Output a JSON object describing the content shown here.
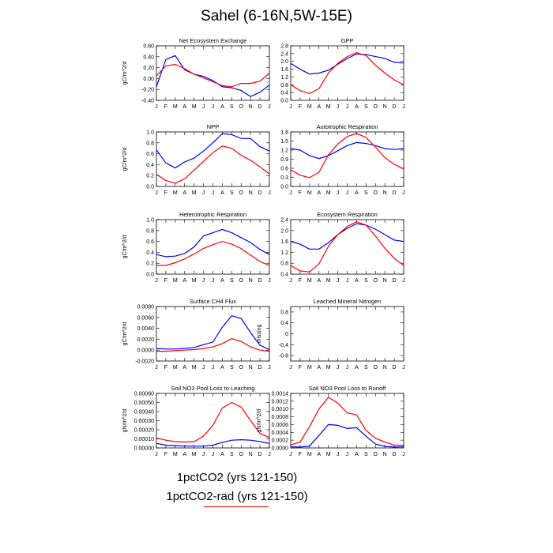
{
  "figure": {
    "title": "Sahel (6-16N,5W-15E)",
    "legend": [
      {
        "label": "1pctCO2 (yrs 121-150)",
        "color": "#0000ff"
      },
      {
        "label": "1pctCO2-rad (yrs 121-150)",
        "color": "#ff0000"
      }
    ]
  },
  "chart_data": [
    {
      "type": "line",
      "title": "Net Ecosystem Exchange",
      "ylabel": "gC/m^2/d",
      "categories": [
        "J",
        "F",
        "M",
        "A",
        "M",
        "J",
        "J",
        "A",
        "S",
        "O",
        "N",
        "D",
        "J"
      ],
      "ylim": [
        -0.4,
        0.6
      ],
      "yticks": [
        -0.4,
        -0.2,
        0.0,
        0.2,
        0.4,
        0.6
      ],
      "ytick_labels": [
        "-0.40",
        "-0.20",
        "0.00",
        "0.20",
        "0.40",
        "0.60"
      ],
      "series": [
        {
          "color": "#0000ff",
          "values": [
            -0.15,
            0.35,
            0.42,
            0.16,
            0.08,
            0.04,
            -0.04,
            -0.15,
            -0.17,
            -0.22,
            -0.33,
            -0.25,
            -0.12
          ]
        },
        {
          "color": "#ff0000",
          "values": [
            0.05,
            0.23,
            0.26,
            0.18,
            0.08,
            0.01,
            -0.06,
            -0.13,
            -0.15,
            -0.09,
            -0.09,
            -0.05,
            0.1
          ]
        }
      ]
    },
    {
      "type": "line",
      "title": "GPP",
      "ylabel": "",
      "categories": [
        "J",
        "F",
        "M",
        "A",
        "M",
        "J",
        "J",
        "A",
        "S",
        "O",
        "N",
        "D",
        "J"
      ],
      "ylim": [
        0.0,
        2.8
      ],
      "yticks": [
        0.0,
        0.4,
        0.8,
        1.2,
        1.6,
        2.0,
        2.4,
        2.8
      ],
      "ytick_labels": [
        "0.0",
        "0.4",
        "0.8",
        "1.2",
        "1.6",
        "2.0",
        "2.4",
        "2.8"
      ],
      "series": [
        {
          "color": "#0000ff",
          "values": [
            1.9,
            1.6,
            1.35,
            1.4,
            1.55,
            1.85,
            2.15,
            2.38,
            2.35,
            2.25,
            2.15,
            1.95,
            1.92
          ]
        },
        {
          "color": "#ff0000",
          "values": [
            0.8,
            0.5,
            0.35,
            0.6,
            1.4,
            1.9,
            2.25,
            2.45,
            2.3,
            1.8,
            1.4,
            1.05,
            0.8
          ]
        }
      ]
    },
    {
      "type": "line",
      "title": "NPP",
      "ylabel": "gC/m^2/d",
      "categories": [
        "J",
        "F",
        "M",
        "A",
        "M",
        "J",
        "J",
        "A",
        "S",
        "O",
        "N",
        "D",
        "J"
      ],
      "ylim": [
        0.0,
        1.0
      ],
      "yticks": [
        0.0,
        0.2,
        0.4,
        0.6,
        0.8,
        1.0
      ],
      "ytick_labels": [
        "0.0",
        "0.2",
        "0.4",
        "0.6",
        "0.8",
        "1.0"
      ],
      "series": [
        {
          "color": "#0000ff",
          "values": [
            0.67,
            0.43,
            0.34,
            0.45,
            0.52,
            0.65,
            0.8,
            0.97,
            0.95,
            0.88,
            0.88,
            0.73,
            0.65
          ]
        },
        {
          "color": "#ff0000",
          "values": [
            0.22,
            0.11,
            0.06,
            0.14,
            0.3,
            0.46,
            0.62,
            0.74,
            0.7,
            0.57,
            0.48,
            0.36,
            0.23
          ]
        }
      ]
    },
    {
      "type": "line",
      "title": "Autotrophic Respiration",
      "ylabel": "",
      "categories": [
        "J",
        "F",
        "M",
        "A",
        "M",
        "J",
        "J",
        "A",
        "S",
        "O",
        "N",
        "D",
        "J"
      ],
      "ylim": [
        0.0,
        1.8
      ],
      "yticks": [
        0.0,
        0.3,
        0.6,
        0.9,
        1.2,
        1.5,
        1.8
      ],
      "ytick_labels": [
        "0.0",
        "0.3",
        "0.6",
        "0.9",
        "1.2",
        "1.5",
        "1.8"
      ],
      "series": [
        {
          "color": "#0000ff",
          "values": [
            1.25,
            1.2,
            1.02,
            0.92,
            1.02,
            1.18,
            1.35,
            1.45,
            1.42,
            1.35,
            1.25,
            1.22,
            1.25
          ]
        },
        {
          "color": "#ff0000",
          "values": [
            0.55,
            0.37,
            0.29,
            0.47,
            1.05,
            1.4,
            1.65,
            1.75,
            1.62,
            1.3,
            0.95,
            0.73,
            0.58
          ]
        }
      ]
    },
    {
      "type": "line",
      "title": "Heterotrophic Respiration",
      "ylabel": "gC/m^2/d",
      "categories": [
        "J",
        "F",
        "M",
        "A",
        "M",
        "J",
        "J",
        "A",
        "S",
        "O",
        "N",
        "D",
        "J"
      ],
      "ylim": [
        0.0,
        1.0
      ],
      "yticks": [
        0.0,
        0.2,
        0.4,
        0.6,
        0.8,
        1.0
      ],
      "ytick_labels": [
        "0.0",
        "0.2",
        "0.4",
        "0.6",
        "0.8",
        "1.0"
      ],
      "series": [
        {
          "color": "#0000ff",
          "values": [
            0.36,
            0.32,
            0.33,
            0.38,
            0.5,
            0.7,
            0.76,
            0.82,
            0.76,
            0.67,
            0.58,
            0.45,
            0.36
          ]
        },
        {
          "color": "#ff0000",
          "values": [
            0.16,
            0.16,
            0.21,
            0.28,
            0.37,
            0.47,
            0.54,
            0.6,
            0.55,
            0.47,
            0.35,
            0.23,
            0.16
          ]
        }
      ]
    },
    {
      "type": "line",
      "title": "Ecosystem Respiration",
      "ylabel": "",
      "categories": [
        "J",
        "F",
        "M",
        "A",
        "M",
        "J",
        "J",
        "A",
        "S",
        "O",
        "N",
        "D",
        "J"
      ],
      "ylim": [
        0.4,
        2.4
      ],
      "yticks": [
        0.4,
        0.8,
        1.2,
        1.6,
        2.0,
        2.4
      ],
      "ytick_labels": [
        "0.4",
        "0.8",
        "1.2",
        "1.6",
        "2.0",
        "2.4"
      ],
      "series": [
        {
          "color": "#0000ff",
          "values": [
            1.6,
            1.5,
            1.32,
            1.32,
            1.55,
            1.85,
            2.08,
            2.25,
            2.2,
            2.05,
            1.85,
            1.65,
            1.6
          ]
        },
        {
          "color": "#ff0000",
          "values": [
            0.72,
            0.52,
            0.48,
            0.78,
            1.42,
            1.85,
            2.15,
            2.32,
            2.2,
            1.8,
            1.35,
            0.98,
            0.72
          ]
        }
      ]
    },
    {
      "type": "line",
      "title": "Surface CH4 Flux",
      "ylabel": "gC/m^2/d",
      "categories": [
        "J",
        "F",
        "M",
        "A",
        "M",
        "J",
        "J",
        "A",
        "S",
        "O",
        "N",
        "D",
        "J"
      ],
      "ylim": [
        -0.002,
        0.008
      ],
      "yticks": [
        -0.002,
        0.0,
        0.002,
        0.004,
        0.006,
        0.008
      ],
      "ytick_labels": [
        "-0.0020",
        "0.0000",
        "0.0020",
        "0.0040",
        "0.0060",
        "0.0080"
      ],
      "series": [
        {
          "color": "#0000ff",
          "values": [
            0.0003,
            0.0002,
            0.0002,
            0.0003,
            0.0005,
            0.001,
            0.0015,
            0.0042,
            0.0063,
            0.0058,
            0.0032,
            0.0009,
            0.0001
          ]
        },
        {
          "color": "#ff0000",
          "values": [
            -0.0002,
            -0.0002,
            -0.0001,
            0.0,
            0.0001,
            0.0003,
            0.0006,
            0.0012,
            0.0021,
            0.0016,
            0.0006,
            0.0,
            -0.0002
          ]
        }
      ]
    },
    {
      "type": "line",
      "title": "Leached Mineral Nitrogen",
      "ylabel": "missing",
      "categories": [
        "J",
        "F",
        "M",
        "A",
        "M",
        "J",
        "J",
        "A",
        "S",
        "O",
        "N",
        "D",
        "J"
      ],
      "ylim": [
        -1.0,
        1.0
      ],
      "yticks": [
        -0.8,
        -0.4,
        0.0,
        0.4,
        0.8
      ],
      "ytick_labels": [
        "-0.8",
        "-0.4",
        "0",
        "0.4",
        "0.8"
      ],
      "series": []
    },
    {
      "type": "line",
      "title": "Soil NO3 Pool Loss to Leaching",
      "ylabel": "gN/m^2/d",
      "categories": [
        "J",
        "F",
        "M",
        "A",
        "M",
        "J",
        "J",
        "A",
        "S",
        "O",
        "N",
        "D",
        "J"
      ],
      "ylim": [
        0.0,
        0.0006
      ],
      "yticks": [
        0.0,
        0.0001,
        0.0002,
        0.0003,
        0.0004,
        0.0005,
        0.0006
      ],
      "ytick_labels": [
        "0.00000",
        "0.00010",
        "0.00020",
        "0.00030",
        "0.00040",
        "0.00050",
        "0.00060"
      ],
      "series": [
        {
          "color": "#0000ff",
          "values": [
            5e-05,
            3e-05,
            2.5e-05,
            2e-05,
            2e-05,
            2e-05,
            3e-05,
            6e-05,
            8.5e-05,
            9e-05,
            8.5e-05,
            7e-05,
            5e-05
          ]
        },
        {
          "color": "#ff0000",
          "values": [
            0.00011,
            8.5e-05,
            7e-05,
            6.5e-05,
            7e-05,
            0.00013,
            0.00025,
            0.00044,
            0.0005,
            0.00045,
            0.0003,
            0.00016,
            0.000115
          ]
        }
      ]
    },
    {
      "type": "line",
      "title": "Soil NO3 Pool Loss to Runoff",
      "ylabel": "gN/m^2/d",
      "categories": [
        "J",
        "F",
        "M",
        "A",
        "M",
        "J",
        "J",
        "A",
        "S",
        "O",
        "N",
        "D",
        "J"
      ],
      "ylim": [
        0.0,
        0.0014
      ],
      "yticks": [
        0.0,
        0.0002,
        0.0004,
        0.0006,
        0.0008,
        0.001,
        0.0012,
        0.0014
      ],
      "ytick_labels": [
        "0.0000",
        "0.0002",
        "0.0004",
        "0.0006",
        "0.0008",
        "0.0010",
        "0.0012",
        "0.0014"
      ],
      "series": [
        {
          "color": "#0000ff",
          "values": [
            3e-05,
            2e-05,
            5e-05,
            0.00032,
            0.0006,
            0.00058,
            0.0005,
            0.00052,
            0.0003,
            0.0001,
            4e-05,
            2e-05,
            3e-05
          ]
        },
        {
          "color": "#ff0000",
          "values": [
            8e-05,
            0.00015,
            0.00055,
            0.001,
            0.0013,
            0.00115,
            0.0009,
            0.00085,
            0.00045,
            0.00025,
            0.00015,
            7e-05,
            7e-05
          ]
        }
      ]
    }
  ]
}
